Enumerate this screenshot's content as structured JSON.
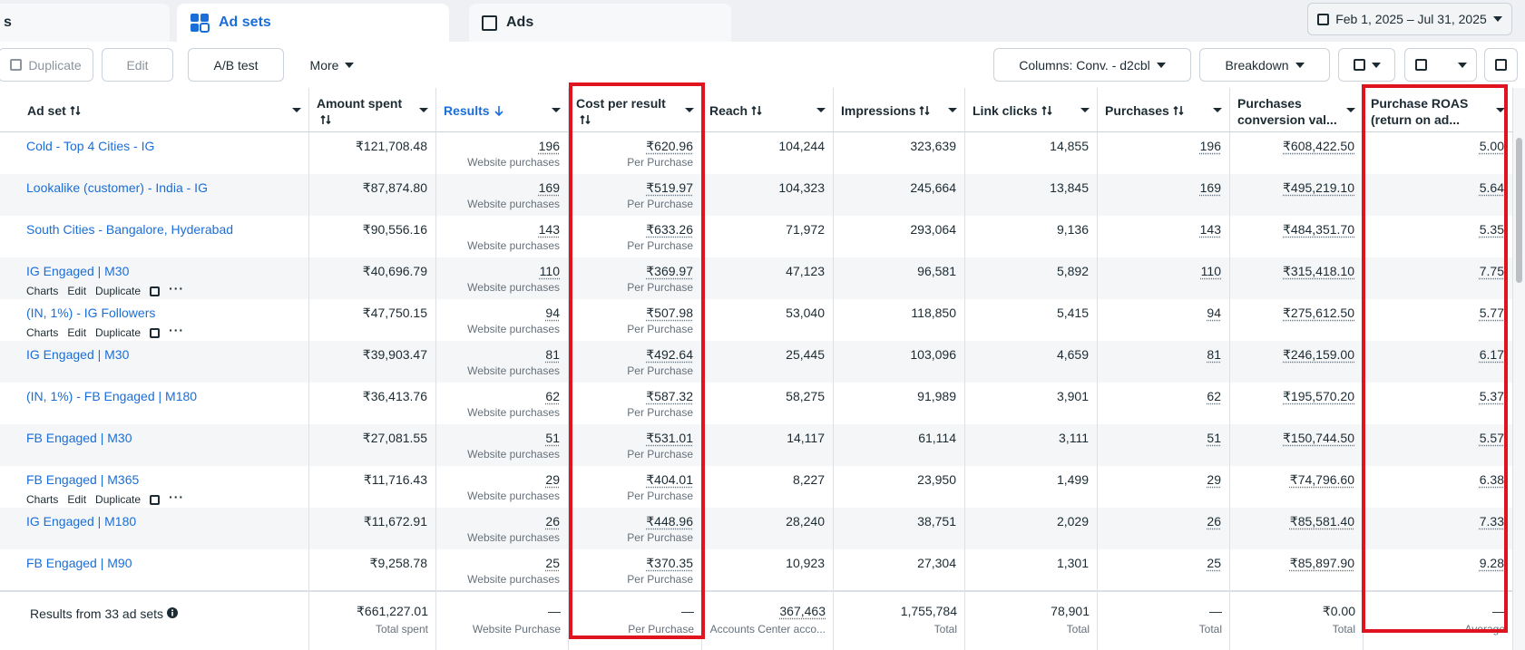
{
  "tabs": [
    "s",
    "Ad sets",
    "Ads"
  ],
  "date_range": "Feb 1, 2025 – Jul 31, 2025",
  "toolbar": {
    "duplicate": "Duplicate",
    "edit": "Edit",
    "ab_test": "A/B test",
    "more": "More",
    "columns": "Columns: Conv. - d2cbl",
    "breakdown": "Breakdown"
  },
  "table": {
    "columns": [
      "Ad set",
      "Amount spent",
      "Results",
      "Cost per result",
      "Reach",
      "Impressions",
      "Link clicks",
      "Purchases",
      "Purchases conversion val...",
      "Purchase ROAS (return on ad..."
    ],
    "rows": [
      {
        "name": "Cold - Top 4 Cities - IG",
        "cells": [
          "₹121,708.48",
          "196",
          "₹620.96",
          "104,244",
          "323,639",
          "14,855",
          "196",
          "₹608,422.50",
          "5.00"
        ],
        "result_type": "Website purchases",
        "cost_type": "Per Purchase"
      },
      {
        "name": "Lookalike (customer) - India - IG",
        "cells": [
          "₹87,874.80",
          "169",
          "₹519.97",
          "104,323",
          "245,664",
          "13,845",
          "169",
          "₹495,219.10",
          "5.64"
        ],
        "result_type": "Website purchases",
        "cost_type": "Per Purchase"
      },
      {
        "name": "South Cities - Bangalore, Hyderabad",
        "cells": [
          "₹90,556.16",
          "143",
          "₹633.26",
          "71,972",
          "293,064",
          "9,136",
          "143",
          "₹484,351.70",
          "5.35"
        ],
        "result_type": "Website purchases",
        "cost_type": "Per Purchase"
      },
      {
        "name": "IG Engaged | M30",
        "actions": [
          "Charts",
          "Edit",
          "Duplicate"
        ],
        "cells": [
          "₹40,696.79",
          "110",
          "₹369.97",
          "47,123",
          "96,581",
          "5,892",
          "110",
          "₹315,418.10",
          "7.75"
        ],
        "result_type": "Website purchases",
        "cost_type": "Per Purchase"
      },
      {
        "name": "(IN, 1%) - IG Followers",
        "actions": [
          "Charts",
          "Edit",
          "Duplicate"
        ],
        "cells": [
          "₹47,750.15",
          "94",
          "₹507.98",
          "53,040",
          "118,850",
          "5,415",
          "94",
          "₹275,612.50",
          "5.77"
        ],
        "result_type": "Website purchases",
        "cost_type": "Per Purchase"
      },
      {
        "name": "IG Engaged | M30",
        "cells": [
          "₹39,903.47",
          "81",
          "₹492.64",
          "25,445",
          "103,096",
          "4,659",
          "81",
          "₹246,159.00",
          "6.17"
        ],
        "result_type": "Website purchases",
        "cost_type": "Per Purchase"
      },
      {
        "name": "(IN, 1%) - FB Engaged | M180",
        "cells": [
          "₹36,413.76",
          "62",
          "₹587.32",
          "58,275",
          "91,989",
          "3,901",
          "62",
          "₹195,570.20",
          "5.37"
        ],
        "result_type": "Website purchases",
        "cost_type": "Per Purchase"
      },
      {
        "name": "FB Engaged | M30",
        "cells": [
          "₹27,081.55",
          "51",
          "₹531.01",
          "14,117",
          "61,114",
          "3,111",
          "51",
          "₹150,744.50",
          "5.57"
        ],
        "result_type": "Website purchases",
        "cost_type": "Per Purchase"
      },
      {
        "name": "FB Engaged | M365",
        "actions": [
          "Charts",
          "Edit",
          "Duplicate"
        ],
        "cells": [
          "₹11,716.43",
          "29",
          "₹404.01",
          "8,227",
          "23,950",
          "1,499",
          "29",
          "₹74,796.60",
          "6.38"
        ],
        "result_type": "Website purchases",
        "cost_type": "Per Purchase"
      },
      {
        "name": "IG Engaged | M180",
        "cells": [
          "₹11,672.91",
          "26",
          "₹448.96",
          "28,240",
          "38,751",
          "2,029",
          "26",
          "₹85,581.40",
          "7.33"
        ],
        "result_type": "Website purchases",
        "cost_type": "Per Purchase"
      },
      {
        "name": "FB Engaged | M90",
        "cells": [
          "₹9,258.78",
          "25",
          "₹370.35",
          "10,923",
          "27,304",
          "1,301",
          "25",
          "₹85,897.90",
          "9.28"
        ],
        "result_type": "Website purchases",
        "cost_type": "Per Purchase"
      }
    ],
    "footer": {
      "label": "Results from 33 ad sets",
      "cells": [
        {
          "value": "₹661,227.01",
          "sub": "Total spent"
        },
        {
          "value": "—",
          "sub": "Website Purchase"
        },
        {
          "value": "—",
          "sub": "Per Purchase"
        },
        {
          "value": "367,463",
          "sub": "Accounts Center acco..."
        },
        {
          "value": "1,755,784",
          "sub": "Total"
        },
        {
          "value": "78,901",
          "sub": "Total"
        },
        {
          "value": "—",
          "sub": "Total"
        },
        {
          "value": "₹0.00",
          "sub": "Total"
        },
        {
          "value": "—",
          "sub": "Average"
        }
      ]
    }
  }
}
